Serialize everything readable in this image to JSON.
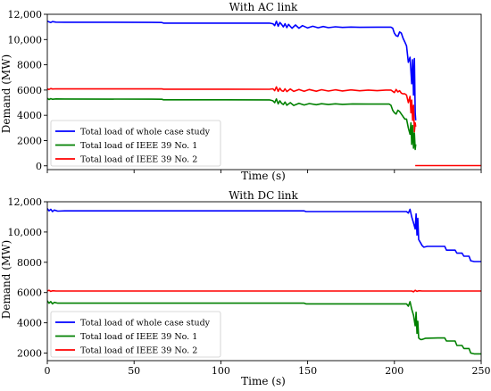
{
  "chart_data": [
    {
      "type": "line",
      "title": "With AC link",
      "xlabel": "Time (s)",
      "ylabel": "Demand (MW)",
      "xlim": [
        0,
        250
      ],
      "ylim": [
        -300,
        12000
      ],
      "x_ticks": [
        0,
        50,
        100,
        150,
        200,
        250
      ],
      "x_tick_labels_shown": false,
      "y_ticks": [
        0,
        2000,
        4000,
        6000,
        8000,
        10000,
        12000
      ],
      "y_tick_labels": [
        "0",
        "2000",
        "4000",
        "6000",
        "8000",
        "10,000",
        "12,000"
      ],
      "grid": false,
      "legend_position": "lower-left",
      "series": [
        {
          "name": "Total load of whole case study",
          "color": "#0000ff",
          "points": [
            [
              0,
              11450
            ],
            [
              1,
              11400
            ],
            [
              2,
              11350
            ],
            [
              3,
              11420
            ],
            [
              5,
              11380
            ],
            [
              10,
              11370
            ],
            [
              30,
              11370
            ],
            [
              60,
              11360
            ],
            [
              66,
              11350
            ],
            [
              67,
              11300
            ],
            [
              100,
              11300
            ],
            [
              128,
              11300
            ],
            [
              130,
              11250
            ],
            [
              131,
              11100
            ],
            [
              132,
              11450
            ],
            [
              133,
              11050
            ],
            [
              134,
              11350
            ],
            [
              135,
              11200
            ],
            [
              136,
              11000
            ],
            [
              137,
              11250
            ],
            [
              138,
              10950
            ],
            [
              139,
              11200
            ],
            [
              141,
              10900
            ],
            [
              143,
              11150
            ],
            [
              145,
              10900
            ],
            [
              147,
              11100
            ],
            [
              150,
              10920
            ],
            [
              153,
              11050
            ],
            [
              156,
              10930
            ],
            [
              159,
              11030
            ],
            [
              162,
              10940
            ],
            [
              166,
              11010
            ],
            [
              170,
              10960
            ],
            [
              175,
              10990
            ],
            [
              180,
              10970
            ],
            [
              190,
              10980
            ],
            [
              198,
              10980
            ],
            [
              199,
              10900
            ],
            [
              200,
              10500
            ],
            [
              201,
              10300
            ],
            [
              202,
              10250
            ],
            [
              203,
              10600
            ],
            [
              204,
              10500
            ],
            [
              205,
              10100
            ],
            [
              206,
              9800
            ],
            [
              207,
              9500
            ],
            [
              208,
              8200
            ],
            [
              209,
              8600
            ],
            [
              210,
              6500
            ],
            [
              210.5,
              8400
            ],
            [
              211,
              5600
            ],
            [
              211.5,
              8500
            ],
            [
              212,
              4200
            ],
            [
              212.3,
              3600
            ]
          ]
        },
        {
          "name": "Total load of IEEE 39 No. 1",
          "color": "#008000",
          "points": [
            [
              0,
              5350
            ],
            [
              1,
              5250
            ],
            [
              2,
              5320
            ],
            [
              3,
              5270
            ],
            [
              5,
              5300
            ],
            [
              10,
              5290
            ],
            [
              60,
              5280
            ],
            [
              66,
              5270
            ],
            [
              67,
              5230
            ],
            [
              128,
              5220
            ],
            [
              130,
              5150
            ],
            [
              131,
              5000
            ],
            [
              132,
              5300
            ],
            [
              133,
              4900
            ],
            [
              134,
              5150
            ],
            [
              135,
              4950
            ],
            [
              136,
              4850
            ],
            [
              137,
              5050
            ],
            [
              138,
              4800
            ],
            [
              140,
              5000
            ],
            [
              142,
              4780
            ],
            [
              145,
              4950
            ],
            [
              148,
              4820
            ],
            [
              151,
              4930
            ],
            [
              155,
              4840
            ],
            [
              158,
              4920
            ],
            [
              162,
              4850
            ],
            [
              166,
              4910
            ],
            [
              170,
              4870
            ],
            [
              176,
              4900
            ],
            [
              185,
              4890
            ],
            [
              197,
              4890
            ],
            [
              198,
              4800
            ],
            [
              199,
              4400
            ],
            [
              200,
              4200
            ],
            [
              201,
              4100
            ],
            [
              202,
              4400
            ],
            [
              203,
              4300
            ],
            [
              204,
              4100
            ],
            [
              205,
              3900
            ],
            [
              206,
              3700
            ],
            [
              207,
              3700
            ],
            [
              208,
              3000
            ],
            [
              209,
              2500
            ],
            [
              209.5,
              3400
            ],
            [
              210,
              1700
            ],
            [
              210.5,
              3200
            ],
            [
              211,
              1400
            ],
            [
              211.5,
              2600
            ],
            [
              212,
              1300
            ],
            [
              212.3,
              1700
            ]
          ]
        },
        {
          "name": "Total load of IEEE 39 No. 2",
          "color": "#ff0000",
          "points": [
            [
              0,
              6100
            ],
            [
              1,
              6050
            ],
            [
              2,
              6120
            ],
            [
              3,
              6080
            ],
            [
              5,
              6100
            ],
            [
              66,
              6090
            ],
            [
              67,
              6070
            ],
            [
              128,
              6060
            ],
            [
              130,
              6100
            ],
            [
              131,
              5950
            ],
            [
              132,
              6250
            ],
            [
              133,
              5900
            ],
            [
              134,
              6150
            ],
            [
              135,
              5950
            ],
            [
              136,
              5900
            ],
            [
              137,
              6100
            ],
            [
              138,
              5880
            ],
            [
              140,
              6080
            ],
            [
              142,
              5890
            ],
            [
              145,
              6050
            ],
            [
              148,
              5900
            ],
            [
              151,
              6040
            ],
            [
              155,
              5910
            ],
            [
              158,
              6030
            ],
            [
              162,
              5920
            ],
            [
              166,
              6020
            ],
            [
              170,
              5930
            ],
            [
              175,
              6010
            ],
            [
              180,
              5940
            ],
            [
              185,
              6000
            ],
            [
              190,
              5950
            ],
            [
              195,
              6000
            ],
            [
              198,
              6000
            ],
            [
              199,
              5900
            ],
            [
              200,
              5800
            ],
            [
              201,
              6050
            ],
            [
              202,
              5850
            ],
            [
              203,
              5950
            ],
            [
              204,
              5750
            ],
            [
              205,
              5700
            ],
            [
              206,
              5700
            ],
            [
              207,
              5600
            ],
            [
              208,
              5000
            ],
            [
              209,
              5500
            ],
            [
              209.5,
              4200
            ],
            [
              210,
              5200
            ],
            [
              210.5,
              3600
            ],
            [
              211,
              4800
            ],
            [
              211.5,
              2700
            ],
            [
              212,
              3400
            ],
            [
              212.3,
              3100
            ]
          ]
        },
        {
          "name": "",
          "color": "#ff0000",
          "points": [
            [
              212,
              20
            ],
            [
              250,
              20
            ]
          ]
        }
      ]
    },
    {
      "type": "line",
      "title": "With DC link",
      "xlabel": "Time (s)",
      "ylabel": "Demand (MW)",
      "xlim": [
        0,
        250
      ],
      "ylim": [
        1500,
        12000
      ],
      "x_ticks": [
        0,
        50,
        100,
        150,
        200,
        250
      ],
      "x_tick_labels": [
        "0",
        "50",
        "100",
        "150",
        "200",
        "250"
      ],
      "y_ticks": [
        2000,
        4000,
        6000,
        8000,
        10000,
        12000
      ],
      "y_tick_labels": [
        "2000",
        "4000",
        "6000",
        "8000",
        "10,000",
        "12,000"
      ],
      "grid": false,
      "legend_position": "lower-left",
      "series": [
        {
          "name": "Total load of whole case study",
          "color": "#0000ff",
          "points": [
            [
              0,
              11550
            ],
            [
              1,
              11400
            ],
            [
              2,
              11500
            ],
            [
              3,
              11350
            ],
            [
              4,
              11450
            ],
            [
              6,
              11380
            ],
            [
              10,
              11400
            ],
            [
              60,
              11400
            ],
            [
              148,
              11400
            ],
            [
              149,
              11350
            ],
            [
              200,
              11350
            ],
            [
              207,
              11350
            ],
            [
              208,
              11250
            ],
            [
              209,
              11500
            ],
            [
              210,
              11000
            ],
            [
              211,
              10600
            ],
            [
              212,
              10200
            ],
            [
              212.5,
              11200
            ],
            [
              213,
              9800
            ],
            [
              213.5,
              10900
            ],
            [
              214,
              9500
            ],
            [
              215,
              9300
            ],
            [
              216,
              9100
            ],
            [
              217,
              9000
            ],
            [
              219,
              9050
            ],
            [
              225,
              9050
            ],
            [
              229,
              9050
            ],
            [
              230,
              8800
            ],
            [
              235,
              8800
            ],
            [
              236,
              8600
            ],
            [
              239,
              8600
            ],
            [
              240,
              8400
            ],
            [
              243,
              8400
            ],
            [
              244,
              8100
            ],
            [
              246,
              8050
            ],
            [
              250,
              8050
            ]
          ]
        },
        {
          "name": "Total load of IEEE 39 No. 1",
          "color": "#008000",
          "points": [
            [
              0,
              5450
            ],
            [
              1,
              5300
            ],
            [
              2,
              5400
            ],
            [
              3,
              5250
            ],
            [
              4,
              5350
            ],
            [
              6,
              5300
            ],
            [
              10,
              5300
            ],
            [
              60,
              5300
            ],
            [
              148,
              5300
            ],
            [
              149,
              5250
            ],
            [
              200,
              5250
            ],
            [
              207,
              5250
            ],
            [
              208,
              5100
            ],
            [
              209,
              5400
            ],
            [
              210,
              4900
            ],
            [
              211,
              4500
            ],
            [
              212,
              3800
            ],
            [
              212.5,
              4700
            ],
            [
              213,
              3300
            ],
            [
              213.5,
              4100
            ],
            [
              214,
              3000
            ],
            [
              215,
              2900
            ],
            [
              216,
              2900
            ],
            [
              218,
              2980
            ],
            [
              225,
              3000
            ],
            [
              229,
              3000
            ],
            [
              230,
              2800
            ],
            [
              235,
              2800
            ],
            [
              236,
              2500
            ],
            [
              239,
              2500
            ],
            [
              240,
              2300
            ],
            [
              243,
              2300
            ],
            [
              244,
              2000
            ],
            [
              246,
              1950
            ],
            [
              250,
              1950
            ]
          ]
        },
        {
          "name": "Total load of IEEE 39 No. 2",
          "color": "#ff0000",
          "points": [
            [
              0,
              6100
            ],
            [
              1,
              6150
            ],
            [
              2,
              6080
            ],
            [
              3,
              6120
            ],
            [
              5,
              6100
            ],
            [
              150,
              6100
            ],
            [
              210,
              6100
            ],
            [
              211,
              6050
            ],
            [
              212,
              6150
            ],
            [
              213,
              6080
            ],
            [
              214,
              6120
            ],
            [
              216,
              6100
            ],
            [
              250,
              6100
            ]
          ]
        }
      ]
    }
  ]
}
